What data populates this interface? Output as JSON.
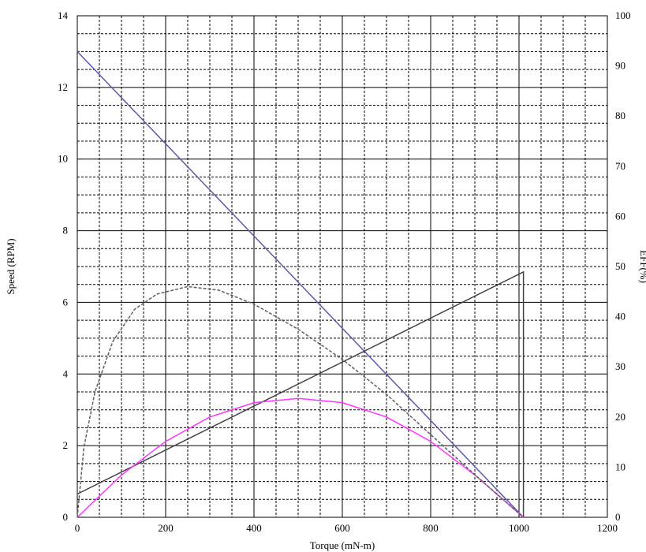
{
  "chart_data": {
    "type": "line",
    "title": "",
    "xlabel": "Torque (mN-m)",
    "ylabel": "Speed (RPM)",
    "y2label": "EFF(%)",
    "xlim": [
      0,
      1200
    ],
    "ylim": [
      0,
      14
    ],
    "y2lim": [
      0,
      100
    ],
    "grid": true,
    "x_ticks": [
      0,
      200,
      400,
      600,
      800,
      1000,
      1200
    ],
    "y_ticks": [
      0,
      2,
      4,
      6,
      8,
      10,
      12,
      14
    ],
    "y2_ticks": [
      0,
      10,
      20,
      30,
      40,
      50,
      60,
      70,
      80,
      90,
      100
    ],
    "series": [
      {
        "color": "#5a5aa8",
        "style": "solid",
        "axis": "left",
        "x": [
          0,
          1010
        ],
        "y": [
          13.0,
          0
        ]
      },
      {
        "color": "#404040",
        "style": "solid",
        "axis": "left",
        "x": [
          0,
          1010,
          1010
        ],
        "y": [
          0.65,
          6.85,
          0
        ]
      },
      {
        "color": "#ff33ff",
        "style": "solid",
        "axis": "left",
        "x": [
          0,
          100,
          200,
          300,
          400,
          500,
          600,
          700,
          800,
          900,
          1010
        ],
        "y": [
          0,
          1.18,
          2.12,
          2.8,
          3.2,
          3.32,
          3.2,
          2.8,
          2.12,
          1.18,
          0
        ]
      },
      {
        "color": "#606060",
        "style": "dashed",
        "axis": "right",
        "x": [
          0,
          15,
          40,
          80,
          130,
          180,
          250,
          320,
          400,
          500,
          600,
          700,
          800,
          900,
          1010
        ],
        "y": [
          0,
          14,
          25,
          35,
          41.5,
          44.5,
          46.0,
          45.3,
          42.5,
          37.5,
          31.5,
          24.5,
          16.5,
          8.5,
          0
        ]
      }
    ]
  }
}
